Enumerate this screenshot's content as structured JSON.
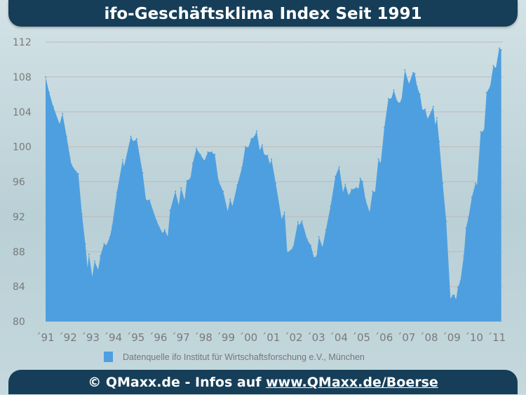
{
  "header": {
    "title": "ifo-Geschäftsklima Index Seit 1991"
  },
  "footer": {
    "copyright": "© QMaxx.de - Infos auf ",
    "link": "www.QMaxx.de/Boerse"
  },
  "chart_data": {
    "type": "area",
    "title": "ifo-Geschäftsklima Index Seit 1991",
    "xlabel": "",
    "ylabel": "",
    "ylim": [
      80,
      112
    ],
    "xlim": [
      1991,
      2011.2
    ],
    "grid": "horizontal",
    "yticks": [
      "80",
      "84",
      "88",
      "92",
      "96",
      "100",
      "104",
      "108",
      "112"
    ],
    "xticks": [
      "´91",
      "´92",
      "´93",
      "´94",
      "´95",
      "´96",
      "´97",
      "´98",
      "´99",
      "´00",
      "´01",
      "´02",
      "´03",
      "´04",
      "´05",
      "´06",
      "´07",
      "´08",
      "´09",
      "´10",
      "´11"
    ],
    "legend": {
      "position": "bottom",
      "label": "Datenquelle ifo Institut für Wirtschaftsforschung e.V., München"
    },
    "color": "#4e9fdf",
    "series": [
      {
        "x": [
          1991.0,
          1991.16,
          1991.34,
          1991.62,
          1991.75,
          1991.93,
          1992.14,
          1992.34,
          1992.45,
          1992.61,
          1992.76,
          1992.86,
          1992.92,
          1993.07,
          1993.17,
          1993.33,
          1993.43,
          1993.59,
          1993.69,
          1993.85,
          1993.95,
          1994.16,
          1994.42,
          1994.47,
          1994.78,
          1994.88,
          1995.04,
          1995.3,
          1995.45,
          1995.61,
          1995.92,
          1996.18,
          1996.28,
          1996.41,
          1996.52,
          1996.75,
          1996.9,
          1997.0,
          1997.16,
          1997.26,
          1997.42,
          1997.52,
          1997.68,
          1997.86,
          1998.04,
          1998.19,
          1998.35,
          1998.5,
          1998.66,
          1998.87,
          1999.07,
          1999.18,
          1999.28,
          1999.49,
          1999.7,
          1999.85,
          1999.98,
          2000.11,
          2000.26,
          2000.35,
          2000.49,
          2000.6,
          2000.68,
          2000.84,
          2000.94,
          2001.01,
          2001.2,
          2001.46,
          2001.59,
          2001.71,
          2001.84,
          2001.97,
          2002.18,
          2002.23,
          2002.36,
          2002.59,
          2002.75,
          2002.9,
          2003.01,
          2003.11,
          2003.27,
          2003.42,
          2003.63,
          2003.84,
          2004.01,
          2004.18,
          2004.28,
          2004.43,
          2004.56,
          2004.77,
          2004.87,
          2004.94,
          2005.05,
          2005.18,
          2005.36,
          2005.49,
          2005.6,
          2005.75,
          2005.85,
          2006.01,
          2006.19,
          2006.32,
          2006.43,
          2006.58,
          2006.68,
          2006.77,
          2006.92,
          2007.1,
          2007.28,
          2007.36,
          2007.46,
          2007.59,
          2007.7,
          2007.82,
          2007.93,
          2008.18,
          2008.27,
          2008.34,
          2008.44,
          2008.6,
          2008.75,
          2008.94,
          2009.04,
          2009.11,
          2009.19,
          2009.27,
          2009.38,
          2009.53,
          2009.63,
          2009.74,
          2009.89,
          2010.05,
          2010.12,
          2010.28,
          2010.36,
          2010.43,
          2010.54,
          2010.7,
          2010.84,
          2010.95,
          2011.1,
          2011.19
        ],
        "y": [
          108.0,
          106.2,
          104.6,
          102.6,
          103.8,
          101.2,
          98.0,
          97.2,
          96.9,
          92.3,
          88.9,
          86.1,
          87.7,
          85.1,
          86.9,
          85.9,
          87.5,
          88.9,
          88.7,
          89.7,
          90.9,
          94.8,
          98.5,
          97.7,
          101.2,
          100.6,
          100.9,
          97.0,
          93.9,
          93.9,
          91.5,
          90.1,
          90.5,
          89.7,
          92.7,
          94.9,
          93.3,
          95.3,
          93.9,
          96.1,
          96.4,
          98.1,
          99.8,
          99.1,
          98.4,
          99.4,
          99.4,
          99.1,
          96.1,
          94.9,
          92.6,
          94.0,
          93.2,
          95.6,
          97.6,
          100.0,
          99.9,
          100.9,
          101.2,
          101.8,
          99.6,
          100.2,
          99.1,
          99.0,
          98.0,
          98.6,
          95.8,
          91.7,
          92.5,
          87.9,
          88.1,
          88.5,
          91.4,
          91.0,
          91.5,
          89.4,
          88.7,
          87.3,
          87.5,
          89.7,
          88.5,
          90.5,
          93.2,
          96.6,
          97.7,
          94.8,
          95.7,
          94.4,
          95.1,
          95.3,
          95.2,
          96.4,
          96.0,
          93.9,
          92.5,
          94.9,
          94.8,
          98.6,
          98.1,
          102.2,
          105.5,
          105.5,
          106.5,
          105.2,
          105.0,
          105.4,
          108.8,
          107.2,
          108.5,
          108.4,
          106.9,
          106.0,
          104.2,
          104.3,
          103.2,
          104.6,
          102.5,
          103.3,
          100.6,
          95.8,
          91.5,
          82.6,
          83.0,
          83.0,
          82.5,
          83.9,
          84.6,
          87.5,
          90.7,
          91.9,
          94.2,
          95.8,
          95.6,
          101.7,
          101.7,
          101.9,
          106.2,
          106.9,
          109.3,
          109.0,
          111.3,
          111.1
        ]
      }
    ]
  }
}
